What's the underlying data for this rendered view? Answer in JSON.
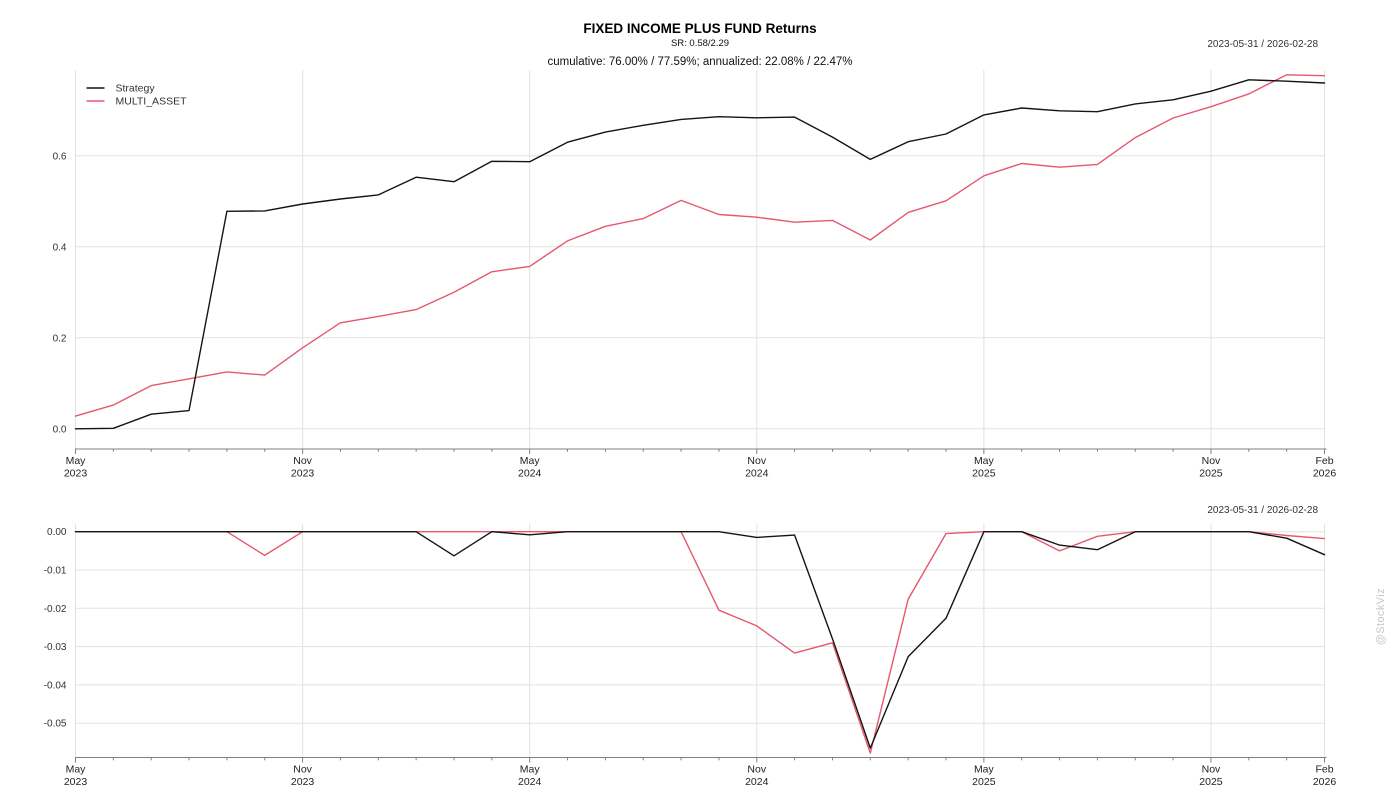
{
  "header": {
    "title": "FIXED INCOME PLUS FUND Returns",
    "subtitle": "SR: 0.58/2.29",
    "stats_line": "cumulative: 76.00% / 77.59%; annualized: 22.08% / 22.47%",
    "date_range": "2023-05-31 / 2026-02-28"
  },
  "watermark": "@StockViz",
  "colors": {
    "strategy": "#141414",
    "benchmark": "#e5586e",
    "grid": "#e2e2e2",
    "axis": "#808080",
    "tick_label": "#333333",
    "legend_label": "#333333"
  },
  "chart_data": [
    {
      "type": "line",
      "name": "cumulative-returns",
      "title": "FIXED INCOME PLUS FUND Returns",
      "xlabel": "",
      "ylabel": "",
      "ylim": [
        0,
        0.79
      ],
      "grid": true,
      "legend_position": "upper-left",
      "categories": [
        "May 2023",
        "Jun 2023",
        "Jul 2023",
        "Aug 2023",
        "Sep 2023",
        "Oct 2023",
        "Nov 2023",
        "Dec 2023",
        "Jan 2024",
        "Feb 2024",
        "Mar 2024",
        "Apr 2024",
        "May 2024",
        "Jun 2024",
        "Jul 2024",
        "Aug 2024",
        "Sep 2024",
        "Oct 2024",
        "Nov 2024",
        "Dec 2024",
        "Jan 2025",
        "Feb 2025",
        "Mar 2025",
        "Apr 2025",
        "May 2025",
        "Jun 2025",
        "Jul 2025",
        "Aug 2025",
        "Sep 2025",
        "Oct 2025",
        "Nov 2025",
        "Dec 2025",
        "Jan 2026",
        "Feb 2026"
      ],
      "series": [
        {
          "name": "Strategy",
          "color": "#141414",
          "values": [
            0.0,
            0.001,
            0.032,
            0.04,
            0.478,
            0.479,
            0.494,
            0.505,
            0.514,
            0.553,
            0.543,
            0.588,
            0.587,
            0.63,
            0.652,
            0.667,
            0.68,
            0.686,
            0.6835,
            0.685,
            0.641,
            0.592,
            0.631,
            0.648,
            0.69,
            0.705,
            0.699,
            0.697,
            0.714,
            0.723,
            0.742,
            0.767,
            0.764,
            0.76
          ]
        },
        {
          "name": "MULTI_ASSET",
          "color": "#e5586e",
          "values": [
            0.028,
            0.052,
            0.095,
            0.11,
            0.125,
            0.118,
            0.178,
            0.233,
            0.247,
            0.262,
            0.3,
            0.345,
            0.357,
            0.413,
            0.445,
            0.462,
            0.502,
            0.471,
            0.465,
            0.454,
            0.458,
            0.415,
            0.4755,
            0.501,
            0.556,
            0.583,
            0.575,
            0.581,
            0.64,
            0.683,
            0.708,
            0.736,
            0.778,
            0.776
          ]
        }
      ],
      "yticks": [
        {
          "v": 0.0,
          "label": "0.0"
        },
        {
          "v": 0.2,
          "label": "0.2"
        },
        {
          "v": 0.4,
          "label": "0.4"
        },
        {
          "v": 0.6,
          "label": "0.6"
        }
      ],
      "xticks": [
        {
          "i": 0,
          "l1": "May",
          "l2": "2023"
        },
        {
          "i": 6,
          "l1": "Nov",
          "l2": "2023"
        },
        {
          "i": 12,
          "l1": "May",
          "l2": "2024"
        },
        {
          "i": 18,
          "l1": "Nov",
          "l2": "2024"
        },
        {
          "i": 24,
          "l1": "May",
          "l2": "2025"
        },
        {
          "i": 30,
          "l1": "Nov",
          "l2": "2025"
        },
        {
          "i": 33,
          "l1": "Feb",
          "l2": "2026"
        }
      ],
      "legend": {
        "show": true
      },
      "px": {
        "left": 75.5,
        "right": 1324.5,
        "plotTop": 70,
        "axisY": 449,
        "yZero": 428.8,
        "pxPerUnit": 455,
        "labelY1": 464,
        "labelY2": 476.5
      }
    },
    {
      "type": "line",
      "name": "drawdown",
      "title": "",
      "xlabel": "",
      "ylabel": "",
      "ylim": [
        -0.059,
        0.001
      ],
      "grid": true,
      "legend_position": "none",
      "categories": [
        "May 2023",
        "Jun 2023",
        "Jul 2023",
        "Aug 2023",
        "Sep 2023",
        "Oct 2023",
        "Nov 2023",
        "Dec 2023",
        "Jan 2024",
        "Feb 2024",
        "Mar 2024",
        "Apr 2024",
        "May 2024",
        "Jun 2024",
        "Jul 2024",
        "Aug 2024",
        "Sep 2024",
        "Oct 2024",
        "Nov 2024",
        "Dec 2024",
        "Jan 2025",
        "Feb 2025",
        "Mar 2025",
        "Apr 2025",
        "May 2025",
        "Jun 2025",
        "Jul 2025",
        "Aug 2025",
        "Sep 2025",
        "Oct 2025",
        "Nov 2025",
        "Dec 2025",
        "Jan 2026",
        "Feb 2026"
      ],
      "series": [
        {
          "name": "Strategy",
          "color": "#141414",
          "values": [
            0,
            0,
            0,
            0,
            0,
            0,
            0,
            0,
            0,
            0,
            -0.0063,
            0,
            -0.0008,
            0,
            0,
            0,
            0,
            0,
            -0.0015,
            -0.0009,
            -0.028,
            -0.0565,
            -0.0326,
            -0.0226,
            0,
            0,
            -0.0035,
            -0.0047,
            0,
            0,
            0,
            0,
            -0.0017,
            -0.006
          ]
        },
        {
          "name": "MULTI_ASSET",
          "color": "#e5586e",
          "values": [
            0,
            0,
            0,
            0,
            0,
            -0.0062,
            0,
            0,
            0,
            0,
            0,
            0,
            0,
            0,
            0,
            0,
            0,
            -0.0205,
            -0.0246,
            -0.0317,
            -0.029,
            -0.0578,
            -0.0176,
            -0.0005,
            0,
            0,
            -0.005,
            -0.0012,
            0,
            0,
            0,
            0,
            -0.001,
            -0.0018
          ]
        }
      ],
      "yticks": [
        {
          "v": 0.0,
          "label": "0.00"
        },
        {
          "v": -0.01,
          "label": "-0.01"
        },
        {
          "v": -0.02,
          "label": "-0.02"
        },
        {
          "v": -0.03,
          "label": "-0.03"
        },
        {
          "v": -0.04,
          "label": "-0.04"
        },
        {
          "v": -0.05,
          "label": "-0.05"
        }
      ],
      "xticks": [
        {
          "i": 0,
          "l1": "May",
          "l2": "2023"
        },
        {
          "i": 6,
          "l1": "Nov",
          "l2": "2023"
        },
        {
          "i": 12,
          "l1": "May",
          "l2": "2024"
        },
        {
          "i": 18,
          "l1": "Nov",
          "l2": "2024"
        },
        {
          "i": 24,
          "l1": "May",
          "l2": "2025"
        },
        {
          "i": 30,
          "l1": "Nov",
          "l2": "2025"
        },
        {
          "i": 33,
          "l1": "Feb",
          "l2": "2026"
        }
      ],
      "legend": {
        "show": false
      },
      "px": {
        "left": 75.5,
        "right": 1324.5,
        "plotTop": 524,
        "axisY": 757.5,
        "yZero": 531.7,
        "pxPerUnit": 3830,
        "labelY1": 772.5,
        "labelY2": 785
      }
    }
  ]
}
